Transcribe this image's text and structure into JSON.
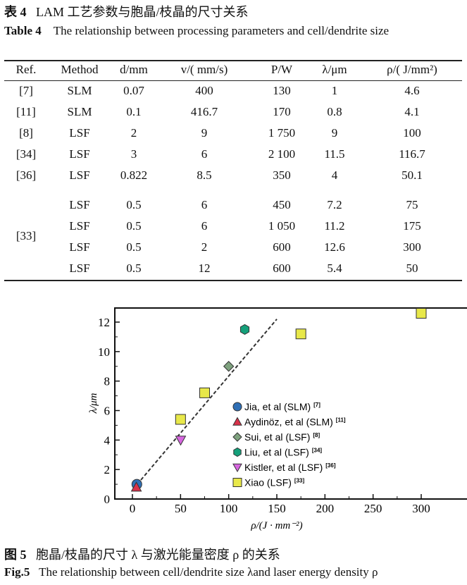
{
  "table": {
    "caption_cn_label": "表 4",
    "caption_cn": "LAM 工艺参数与胞晶/枝晶的尺寸关系",
    "caption_en_label": "Table 4",
    "caption_en": "The relationship between processing parameters and cell/dendrite size",
    "headers": [
      "Ref.",
      "Method",
      "d/mm",
      "v/( mm/s)",
      "P/W",
      "λ/μm",
      "ρ/( J/mm²)"
    ],
    "rows": [
      [
        "[7]",
        "SLM",
        "0.07",
        "400",
        "130",
        "1",
        "4.6"
      ],
      [
        "[11]",
        "SLM",
        "0.1",
        "416.7",
        "170",
        "0.8",
        "4.1"
      ],
      [
        "[8]",
        "LSF",
        "2",
        "9",
        "1 750",
        "9",
        "100"
      ],
      [
        "[34]",
        "LSF",
        "3",
        "6",
        "2 100",
        "11.5",
        "116.7"
      ],
      [
        "[36]",
        "LSF",
        "0.822",
        "8.5",
        "350",
        "4",
        "50.1"
      ],
      [
        "[33]",
        "LSF",
        "0.5",
        "6",
        "450",
        "7.2",
        "75"
      ],
      [
        "",
        "LSF",
        "0.5",
        "6",
        "1 050",
        "11.2",
        "175"
      ],
      [
        "",
        "LSF",
        "0.5",
        "2",
        "600",
        "12.6",
        "300"
      ],
      [
        "",
        "LSF",
        "0.5",
        "12",
        "600",
        "5.4",
        "50"
      ]
    ]
  },
  "figure": {
    "caption_cn_label": "图 5",
    "caption_cn": "胞晶/枝晶的尺寸 λ 与激光能量密度 ρ 的关系",
    "caption_en_label": "Fig.5",
    "caption_en": "The relationship between cell/dendrite size λand laser energy density ρ"
  },
  "chart_data": {
    "type": "scatter",
    "xlabel": "ρ/(J · mm⁻²)",
    "ylabel": "λ/μm",
    "xlim": [
      -15,
      350
    ],
    "ylim": [
      -0.1,
      13.3
    ],
    "xticks": [
      0,
      50,
      100,
      150,
      200,
      250,
      300
    ],
    "yticks": [
      0,
      2,
      4,
      6,
      8,
      10,
      12
    ],
    "legend_position": "center-right",
    "trendline": {
      "style": "dashed",
      "points": [
        [
          5,
          1
        ],
        [
          150,
          12.2
        ]
      ],
      "color": "#333333"
    },
    "series": [
      {
        "name": "Jia, et al (SLM)",
        "ref": "[7]",
        "marker": "circle",
        "color": "#2f6fb5",
        "points": [
          [
            4.6,
            1
          ]
        ]
      },
      {
        "name": "Aydinöz, et al (SLM)",
        "ref": "[11]",
        "marker": "triangle-up",
        "color": "#d8324a",
        "points": [
          [
            4.1,
            0.8
          ]
        ]
      },
      {
        "name": "Sui, et al (LSF)",
        "ref": "[8]",
        "marker": "diamond",
        "color": "#7fa27f",
        "points": [
          [
            100,
            9
          ]
        ]
      },
      {
        "name": "Liu, et al (LSF)",
        "ref": "[34]",
        "marker": "hexagon",
        "color": "#14a07a",
        "points": [
          [
            116.7,
            11.5
          ]
        ]
      },
      {
        "name": "Kistler, et al (LSF)",
        "ref": "[36]",
        "marker": "triangle-down",
        "color": "#d766e0",
        "points": [
          [
            50.1,
            4
          ]
        ]
      },
      {
        "name": "Xiao (LSF)",
        "ref": "[33]",
        "marker": "square",
        "color": "#e8e84a",
        "points": [
          [
            75,
            7.2
          ],
          [
            175,
            11.2
          ],
          [
            300,
            12.6
          ],
          [
            50,
            5.4
          ]
        ]
      }
    ]
  }
}
